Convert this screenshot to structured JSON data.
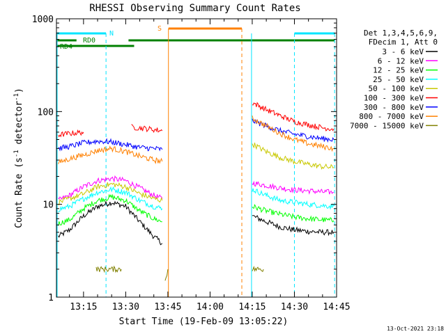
{
  "chart_data": {
    "type": "line",
    "title": "RHESSI Observing Summary Count Rates",
    "xlabel": "Start Time (19-Feb-09 13:05:22)",
    "ylabel": "Count Rate (s⁻¹ detector⁻¹)",
    "ylabel_parts": {
      "pre": "Count Rate (s",
      "sup1": "-1",
      "mid": " detector",
      "sup2": "-1",
      "post": ")"
    },
    "y_scale": "log",
    "ylim": [
      1,
      1000
    ],
    "xlim_minutes": [
      5.37,
      105.0
    ],
    "x_ticks": [
      {
        "m": 15,
        "label": "13:15"
      },
      {
        "m": 30,
        "label": "13:30"
      },
      {
        "m": 45,
        "label": "13:45"
      },
      {
        "m": 60,
        "label": "14:00"
      },
      {
        "m": 75,
        "label": "14:15"
      },
      {
        "m": 90,
        "label": "14:30"
      },
      {
        "m": 105,
        "label": "14:45"
      }
    ],
    "y_ticks": [
      {
        "v": 1,
        "label": "1"
      },
      {
        "v": 10,
        "label": "10"
      },
      {
        "v": 100,
        "label": "100"
      },
      {
        "v": 1000,
        "label": "1000"
      }
    ],
    "legend_header": [
      "Det 1,3,4,5,6,9,",
      "FDecim 1, Att 0"
    ],
    "legend_position": "right",
    "grid": false,
    "timestamp": "13-Oct-2021 23:18",
    "series": [
      {
        "name": "3 - 6 keV",
        "color": "#000000",
        "segments": [
          {
            "x": [
              6,
              10,
              15,
              20,
              25,
              30,
              35,
              40,
              43
            ],
            "y": [
              4.5,
              5.3,
              7.5,
              9.5,
              10.5,
              9.5,
              6.5,
              4.5,
              3.8
            ]
          },
          {
            "x": [
              75,
              80,
              85,
              90,
              95,
              100,
              104
            ],
            "y": [
              7.5,
              6.5,
              5.7,
              5.3,
              5.1,
              5.0,
              5.0
            ]
          }
        ]
      },
      {
        "name": "6 - 12 keV",
        "color": "#ff00ff",
        "segments": [
          {
            "x": [
              6,
              10,
              15,
              20,
              25,
              30,
              35,
              40,
              43
            ],
            "y": [
              11,
              12.5,
              15.5,
              18,
              19,
              18,
              15,
              12.5,
              11.5
            ]
          },
          {
            "x": [
              75,
              80,
              85,
              90,
              95,
              100,
              104
            ],
            "y": [
              17,
              16,
              15,
              14.3,
              14,
              13.6,
              13.5
            ]
          }
        ]
      },
      {
        "name": "12 - 25 keV",
        "color": "#00ff00",
        "segments": [
          {
            "x": [
              6,
              10,
              15,
              20,
              25,
              30,
              35,
              40,
              43
            ],
            "y": [
              6.2,
              6.8,
              9,
              11,
              12,
              11,
              8.5,
              7,
              6.5
            ]
          },
          {
            "x": [
              75,
              80,
              85,
              90,
              95,
              100,
              104
            ],
            "y": [
              9.5,
              8.5,
              7.8,
              7.3,
              7,
              6.8,
              6.7
            ]
          }
        ]
      },
      {
        "name": "25 - 50 keV",
        "color": "#00ffff",
        "segments": [
          {
            "x": [
              6,
              10,
              15,
              20,
              25,
              30,
              35,
              40,
              43
            ],
            "y": [
              8.8,
              9.5,
              11.5,
              13.5,
              14.5,
              13.5,
              11,
              9.5,
              9
            ]
          },
          {
            "x": [
              75,
              80,
              85,
              90,
              95,
              100,
              104
            ],
            "y": [
              14.5,
              12.5,
              11,
              10.5,
              10,
              9.7,
              9.5
            ]
          }
        ]
      },
      {
        "name": "50 - 100 keV",
        "color": "#c8c800",
        "segments": [
          {
            "x": [
              6,
              10,
              15,
              20,
              25,
              30,
              35,
              40,
              43
            ],
            "y": [
              10.5,
              11.5,
              13,
              15.5,
              16.5,
              15.5,
              13,
              11.5,
              11
            ]
          },
          {
            "x": [
              75,
              80,
              85,
              90,
              95,
              100,
              104
            ],
            "y": [
              45,
              37,
              32,
              29,
              27,
              25.5,
              25
            ]
          }
        ]
      },
      {
        "name": "100 - 300 keV",
        "color": "#ff0000",
        "segments": [
          {
            "x": [
              6,
              10,
              15
            ],
            "y": [
              56,
              58,
              60
            ]
          },
          {
            "x": [
              32,
              36,
              40,
              43
            ],
            "y": [
              68,
              66,
              64,
              62
            ]
          },
          {
            "x": [
              75,
              80,
              85,
              90,
              95,
              100,
              104
            ],
            "y": [
              125,
              105,
              90,
              78,
              72,
              67,
              65
            ]
          }
        ]
      },
      {
        "name": "300 - 800 keV",
        "color": "#0000ff",
        "segments": [
          {
            "x": [
              6,
              10,
              15,
              20,
              25,
              30,
              35,
              40,
              43
            ],
            "y": [
              40,
              42,
              46,
              48,
              47,
              44,
              41,
              40,
              39
            ]
          },
          {
            "x": [
              75,
              80,
              85,
              90,
              95,
              100,
              104
            ],
            "y": [
              80,
              70,
              62,
              57,
              54,
              51,
              50
            ]
          }
        ]
      },
      {
        "name": "800 - 7000 keV",
        "color": "#ff8000",
        "segments": [
          {
            "x": [
              6,
              10,
              15,
              20,
              25,
              30,
              35,
              40,
              43
            ],
            "y": [
              28,
              31,
              34,
              38,
              40,
              37,
              33,
              30,
              29
            ]
          },
          {
            "x": [
              75,
              80,
              85,
              90,
              95,
              100,
              104
            ],
            "y": [
              85,
              70,
              58,
              50,
              45,
              42,
              40
            ]
          }
        ]
      },
      {
        "name": "7000 - 15000 keV",
        "color": "#808000",
        "segments": [
          {
            "x": [
              19.5,
              21,
              23,
              25,
              27,
              28.5
            ],
            "y": [
              2,
              2,
              2,
              2,
              2,
              2
            ]
          },
          {
            "x": [
              44,
              45
            ],
            "y": [
              1.5,
              2
            ]
          },
          {
            "x": [
              75,
              77,
              79
            ],
            "y": [
              2,
              2,
              2
            ]
          }
        ]
      }
    ],
    "annotations": {
      "rd0_label": "RD0",
      "rd4_label": "RD4",
      "n_label": "N",
      "s_label": "S",
      "attenuator_segments_minutes": [
        [
          5.37,
          23.0
        ],
        [
          90.0,
          104.3
        ]
      ],
      "rd0_segments_minutes": [
        [
          5.37,
          12.5
        ],
        [
          31.0,
          104.3
        ]
      ],
      "rd4_segments_minutes": [
        [
          5.37,
          33.0
        ]
      ],
      "saa_segment_minutes": [
        [
          45.2,
          71.3
        ]
      ],
      "night_lines_minutes": [
        23.0,
        90.0,
        104.3
      ],
      "saa_lines_minutes": [
        45.2,
        71.3
      ],
      "gap_minutes": [
        44.5,
        74.5
      ]
    }
  }
}
